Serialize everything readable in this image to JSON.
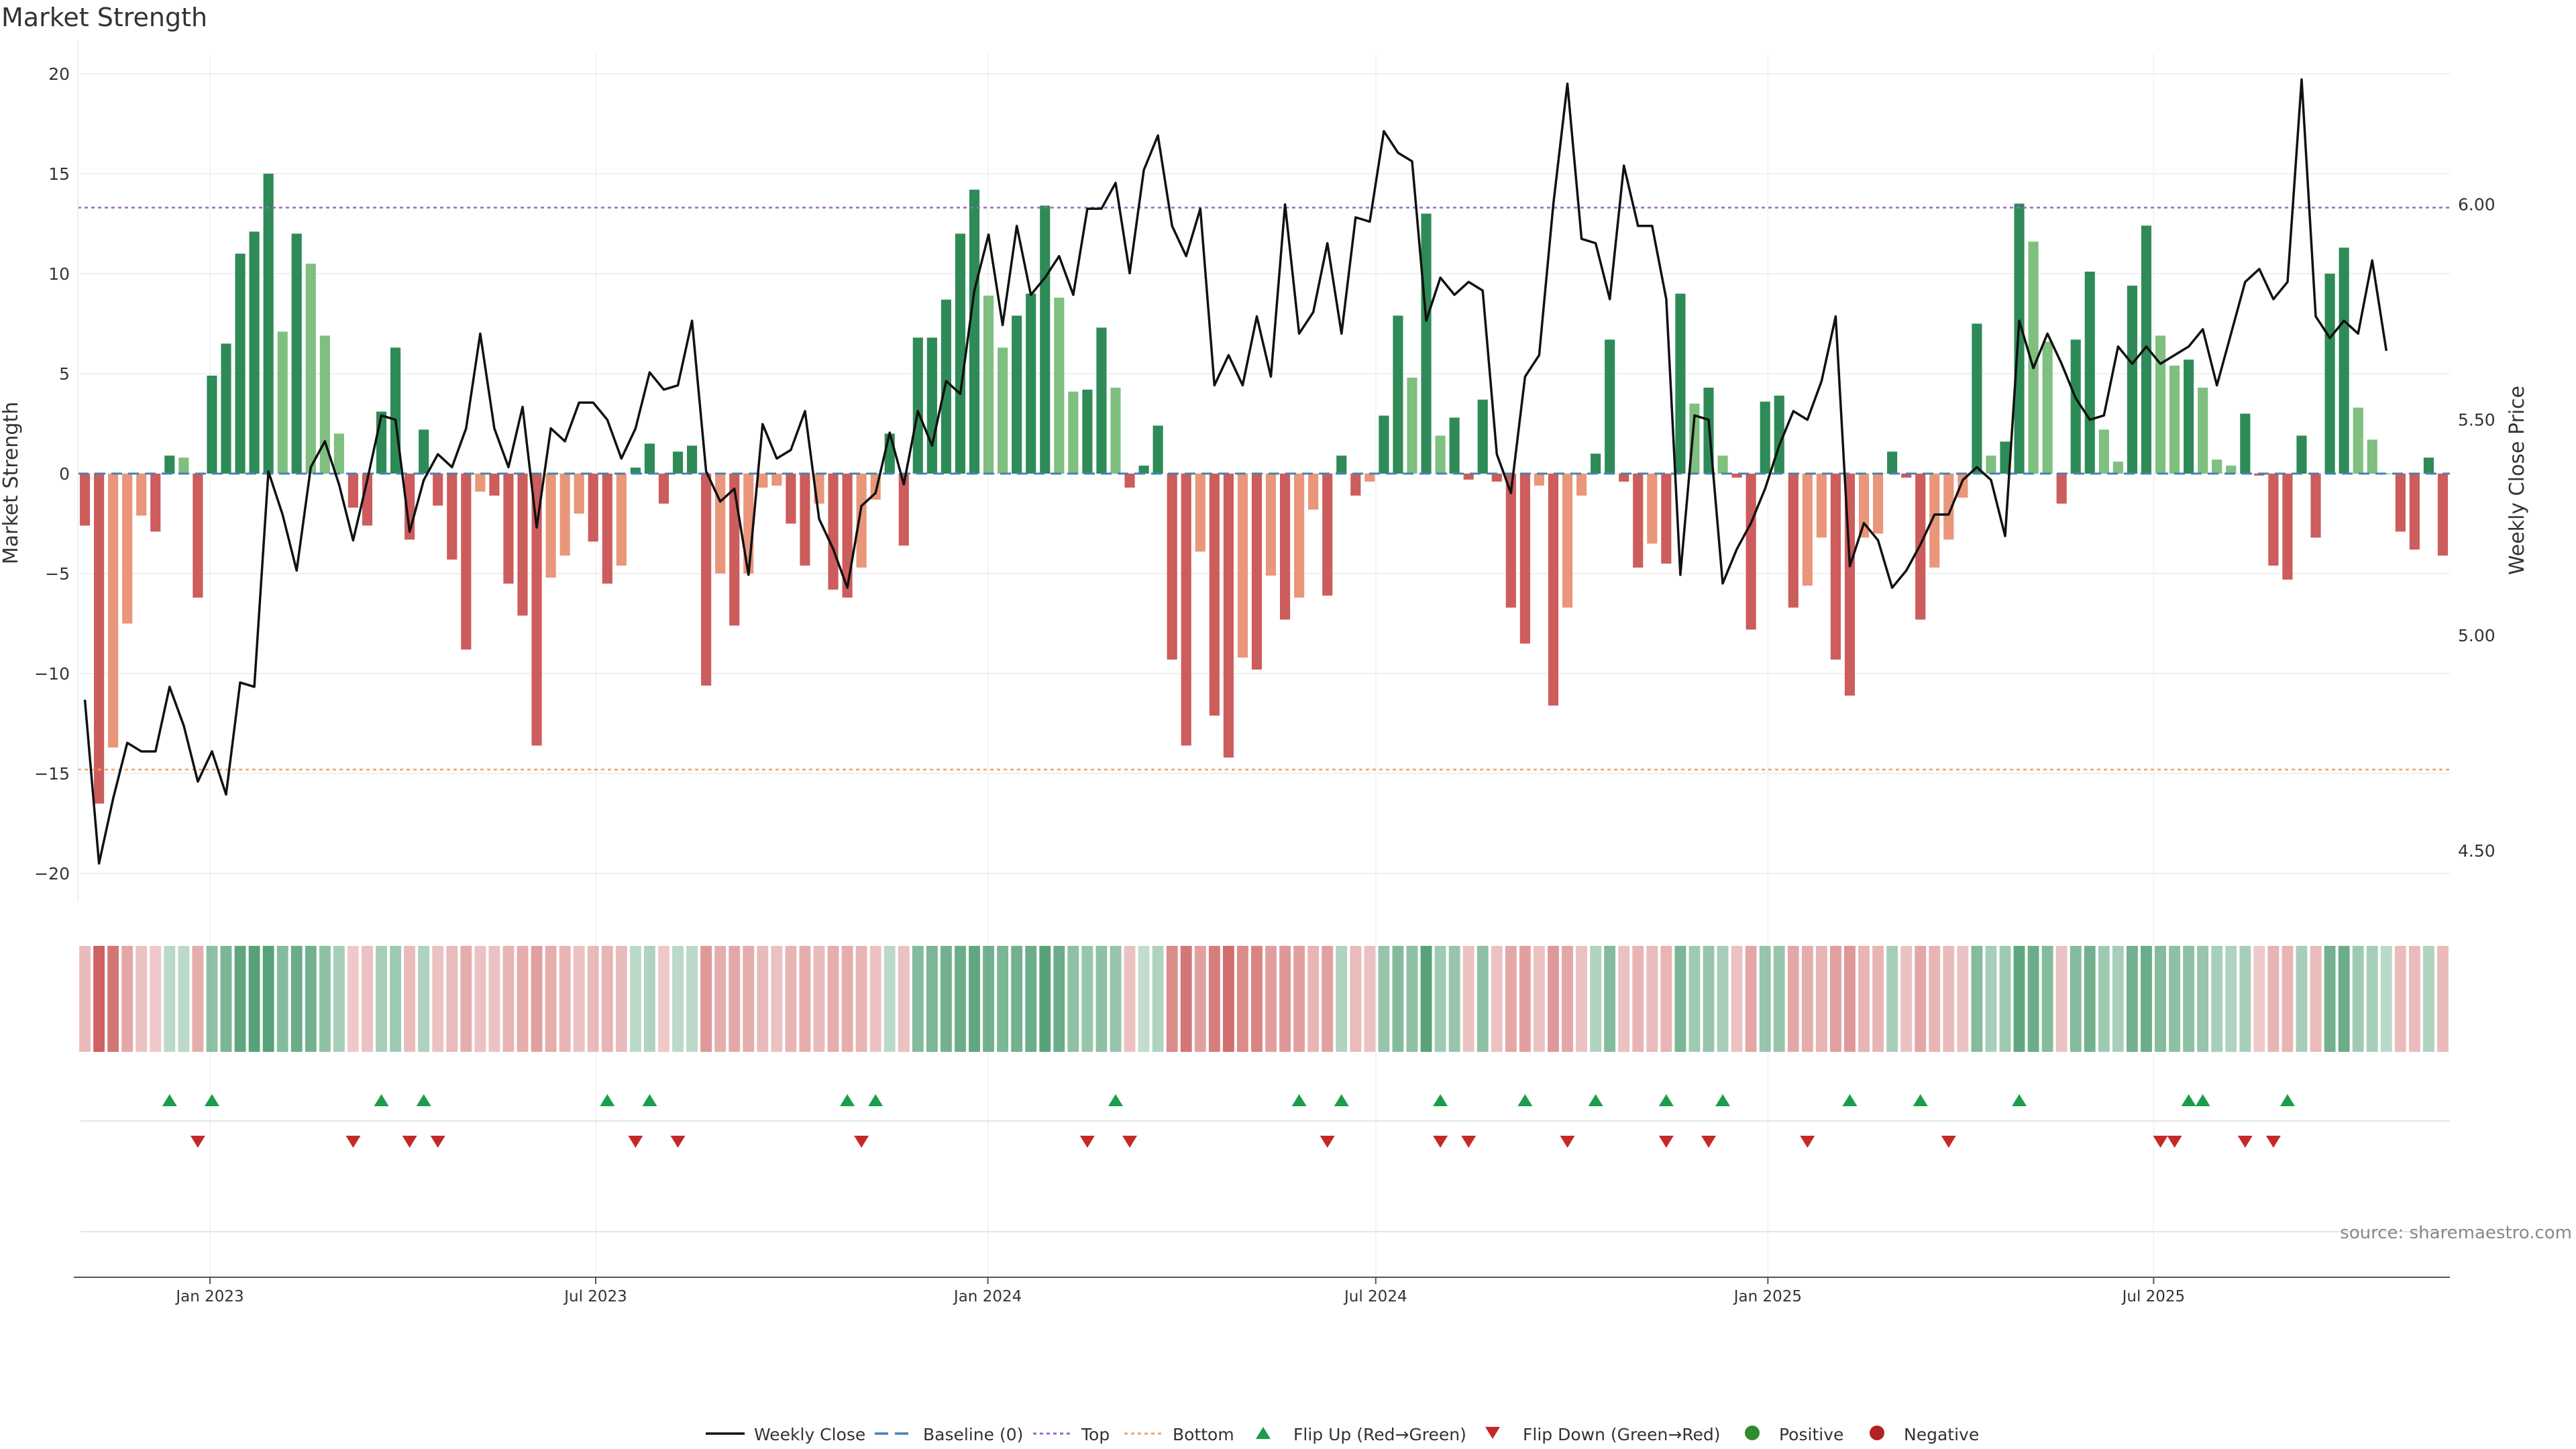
{
  "chart_data": {
    "type": "bar",
    "title": "Market Strength",
    "ylabel_left": "Market Strength",
    "ylabel_right": "Weekly Close Price",
    "ylim_left": [
      -21,
      21
    ],
    "ylim_right": [
      4.4,
      6.35
    ],
    "left_ticks": [
      20,
      15,
      10,
      5,
      0,
      -5,
      -10,
      -15,
      -20
    ],
    "left_tick_labels": [
      "20",
      "15",
      "10",
      "5",
      "0",
      "−5",
      "−10",
      "−15",
      "−20"
    ],
    "right_ticks": [
      6.0,
      5.5,
      5.0,
      4.5
    ],
    "right_tick_labels": [
      "6.00",
      "5.50",
      "5.00",
      "4.50"
    ],
    "top_line": 13.3,
    "bottom_line": -14.8,
    "x_start": "2022-10-31",
    "x_end": "2025-11-17",
    "x_ticks": [
      "2023-01-01",
      "2023-07-01",
      "2024-01-01",
      "2024-07-01",
      "2025-01-01",
      "2025-07-01"
    ],
    "x_tick_labels": [
      "Jan 2023",
      "Jul 2023",
      "Jan 2024",
      "Jul 2024",
      "Jan 2025",
      "Jul 2025"
    ],
    "market_strength": [
      -2.6,
      -16.5,
      -13.7,
      -7.5,
      -2.1,
      -2.9,
      0.9,
      0.8,
      -6.2,
      4.9,
      6.5,
      11,
      12.1,
      15,
      7.1,
      12,
      10.5,
      6.9,
      2,
      -1.7,
      -2.6,
      3.1,
      6.3,
      -3.3,
      2.2,
      -1.6,
      -4.3,
      -8.8,
      -0.9,
      -1.1,
      -5.5,
      -7.1,
      -13.6,
      -5.2,
      -4.1,
      -2,
      -3.4,
      -5.5,
      -4.6,
      0.3,
      1.5,
      -1.5,
      1.1,
      1.4,
      -10.6,
      -5,
      -7.6,
      -5,
      -0.7,
      -0.6,
      -2.5,
      -4.6,
      -1.5,
      -5.8,
      -6.2,
      -4.7,
      -1.3,
      2,
      -3.6,
      6.8,
      6.8,
      8.7,
      12,
      14.2,
      8.9,
      6.3,
      7.9,
      9,
      13.4,
      8.8,
      4.1,
      4.2,
      7.3,
      4.3,
      -0.7,
      0.4,
      2.4,
      -9.3,
      -13.6,
      -3.9,
      -12.1,
      -14.2,
      -9.2,
      -9.8,
      -5.1,
      -7.3,
      -6.2,
      -1.8,
      -6.1,
      0.9,
      -1.1,
      -0.4,
      2.9,
      7.9,
      4.8,
      13,
      1.9,
      2.8,
      -0.3,
      3.7,
      -0.4,
      -6.7,
      -8.5,
      -0.6,
      -11.6,
      -6.7,
      -1.1,
      1,
      6.7,
      -0.4,
      -4.7,
      -3.5,
      -4.5,
      9,
      3.5,
      4.3,
      0.9,
      -0.2,
      -7.8,
      3.6,
      3.9,
      -6.7,
      -5.6,
      -3.2,
      -9.3,
      -11.1,
      -3.2,
      -3,
      1.1,
      -0.2,
      -7.3,
      -4.7,
      -3.3,
      -1.2,
      7.5,
      0.9,
      1.6,
      13.5,
      11.6,
      6.6,
      -1.5,
      6.7,
      10.1,
      2.2,
      0.6,
      9.4,
      12.4,
      6.9,
      5.4,
      5.7,
      4.3,
      0.7,
      0.4,
      3,
      -0.1,
      -4.6,
      -5.3,
      1.9,
      -3.2,
      10,
      11.3,
      3.3,
      1.7,
      0,
      -2.9,
      -3.8,
      0.8,
      -4.1
    ],
    "weekly_close": [
      4.85,
      4.47,
      4.62,
      4.75,
      4.73,
      4.73,
      4.88,
      4.79,
      4.66,
      4.73,
      4.63,
      4.89,
      4.88,
      5.38,
      5.28,
      5.15,
      5.39,
      5.45,
      5.35,
      5.22,
      5.36,
      5.51,
      5.5,
      5.24,
      5.36,
      5.42,
      5.39,
      5.48,
      5.7,
      5.48,
      5.39,
      5.53,
      5.25,
      5.48,
      5.45,
      5.54,
      5.54,
      5.5,
      5.41,
      5.48,
      5.61,
      5.57,
      5.58,
      5.73,
      5.38,
      5.31,
      5.34,
      5.14,
      5.49,
      5.41,
      5.43,
      5.52,
      5.27,
      5.2,
      5.11,
      5.3,
      5.33,
      5.47,
      5.35,
      5.52,
      5.44,
      5.59,
      5.56,
      5.8,
      5.93,
      5.72,
      5.95,
      5.79,
      5.83,
      5.88,
      5.79,
      5.99,
      5.99,
      6.05,
      5.84,
      6.08,
      6.16,
      5.95,
      5.88,
      5.99,
      5.58,
      5.65,
      5.58,
      5.74,
      5.6,
      6.0,
      5.7,
      5.75,
      5.91,
      5.7,
      5.97,
      5.96,
      6.17,
      6.12,
      6.1,
      5.73,
      5.83,
      5.79,
      5.82,
      5.8,
      5.42,
      5.33,
      5.6,
      5.65,
      6.0,
      6.28,
      5.92,
      5.91,
      5.78,
      6.09,
      5.95,
      5.95,
      5.78,
      5.14,
      5.51,
      5.5,
      5.12,
      5.2,
      5.26,
      5.34,
      5.44,
      5.52,
      5.5,
      5.59,
      5.74,
      5.16,
      5.26,
      5.22,
      5.11,
      5.15,
      5.21,
      5.28,
      5.28,
      5.36,
      5.39,
      5.36,
      5.23,
      5.73,
      5.62,
      5.7,
      5.63,
      5.55,
      5.5,
      5.51,
      5.67,
      5.63,
      5.67,
      5.63,
      5.65,
      5.67,
      5.71,
      5.58,
      5.7,
      5.82,
      5.85,
      5.78,
      5.82,
      6.29,
      5.74,
      5.69,
      5.73,
      5.7,
      5.87,
      5.66
    ],
    "heat_band": [
      -0.35,
      -1.0,
      -0.85,
      -0.5,
      -0.3,
      -0.25,
      0.25,
      0.25,
      -0.45,
      0.5,
      0.6,
      0.75,
      0.8,
      0.8,
      0.55,
      0.7,
      0.65,
      0.5,
      0.35,
      -0.25,
      -0.3,
      0.35,
      0.4,
      -0.35,
      0.3,
      -0.3,
      -0.35,
      -0.45,
      -0.3,
      -0.3,
      -0.4,
      -0.45,
      -0.55,
      -0.45,
      -0.4,
      -0.3,
      -0.35,
      -0.4,
      -0.35,
      0.25,
      0.3,
      -0.25,
      0.25,
      0.25,
      -0.6,
      -0.45,
      -0.5,
      -0.45,
      -0.35,
      -0.3,
      -0.4,
      -0.45,
      -0.35,
      -0.45,
      -0.45,
      -0.4,
      -0.3,
      0.25,
      -0.3,
      0.55,
      0.6,
      0.65,
      0.7,
      0.75,
      0.65,
      0.6,
      0.65,
      0.7,
      0.8,
      0.7,
      0.5,
      0.45,
      0.5,
      0.45,
      -0.3,
      0.2,
      0.3,
      -0.7,
      -0.85,
      -0.55,
      -0.8,
      -0.9,
      -0.7,
      -0.75,
      -0.55,
      -0.6,
      -0.55,
      -0.4,
      -0.55,
      0.3,
      -0.35,
      -0.3,
      0.45,
      0.55,
      0.5,
      0.8,
      0.4,
      0.45,
      -0.3,
      0.5,
      -0.3,
      -0.5,
      -0.55,
      -0.3,
      -0.6,
      -0.5,
      -0.3,
      0.3,
      0.55,
      -0.3,
      -0.4,
      -0.35,
      -0.4,
      0.6,
      0.4,
      0.45,
      0.35,
      -0.3,
      -0.5,
      0.45,
      0.45,
      -0.5,
      -0.45,
      -0.4,
      -0.55,
      -0.6,
      -0.4,
      -0.4,
      0.35,
      -0.3,
      -0.5,
      -0.4,
      -0.35,
      -0.3,
      0.55,
      0.35,
      0.4,
      0.75,
      0.7,
      0.55,
      -0.3,
      0.55,
      0.65,
      0.4,
      0.35,
      0.65,
      0.7,
      0.55,
      0.5,
      0.5,
      0.45,
      0.35,
      0.3,
      0.35,
      -0.25,
      -0.4,
      -0.4,
      0.35,
      -0.35,
      0.65,
      0.7,
      0.4,
      0.35,
      0.25,
      -0.35,
      -0.35,
      0.3,
      -0.35
    ],
    "flip_up_weeks": [
      6,
      9,
      21,
      24,
      37,
      40,
      54,
      56,
      73,
      86,
      89,
      96,
      102,
      107,
      112,
      116,
      125,
      130,
      137,
      149,
      150,
      156
    ],
    "flip_down_weeks": [
      8,
      19,
      23,
      25,
      39,
      42,
      55,
      71,
      74,
      88,
      96,
      98,
      105,
      112,
      115,
      122,
      132,
      147,
      148,
      153,
      155
    ],
    "colors": {
      "strong_green": "#2e8b57",
      "light_green": "#7fbf7f",
      "strong_red": "#cd5c5c",
      "light_red": "#e9967a",
      "top_line": "#9966cc",
      "bottom_line": "#f4a460",
      "baseline": "#4682b4",
      "flip_up": "#1b9e4b",
      "flip_down": "#c62828",
      "positive": "#2e8b2e",
      "negative": "#b22222"
    },
    "legend": {
      "weekly_close": "Weekly Close",
      "baseline": "Baseline (0)",
      "top": "Top",
      "bottom": "Bottom",
      "flip_up": "Flip Up (Red→Green)",
      "flip_down": "Flip Down (Green→Red)",
      "positive": "Positive",
      "negative": "Negative"
    },
    "source": "source: sharemaestro.com"
  }
}
